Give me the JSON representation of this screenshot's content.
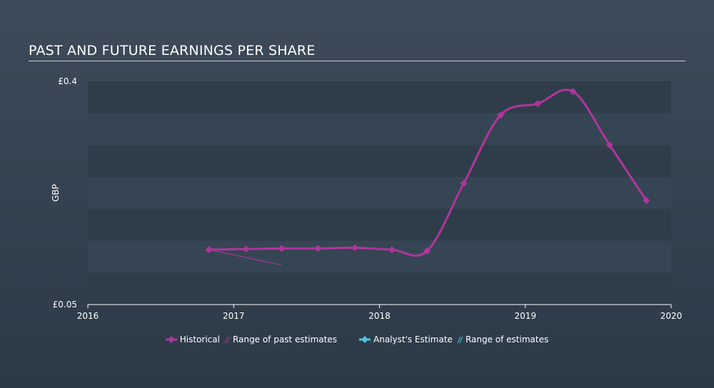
{
  "title": "PAST AND FUTURE EARNINGS PER SHARE",
  "colors": {
    "historical": "#b0359a",
    "past_range": "#b0359a",
    "estimate": "#4fc1e0",
    "estimate_range": "#4fc1e0",
    "band_dark": "#2f3d4b",
    "band_light": "#364554"
  },
  "legend": {
    "historical": "Historical",
    "past_range": "Range of past estimates",
    "estimate": "Analyst's Estimate",
    "estimate_range": "Range of estimates"
  },
  "chart_data": {
    "type": "line",
    "ylabel": "GBP",
    "ylim": [
      0.05,
      0.4
    ],
    "xlim": [
      2016,
      2020
    ],
    "y_tick_labels": [
      "£0.05",
      "£0.4"
    ],
    "x_tick_labels": [
      "2016",
      "2017",
      "2018",
      "2019",
      "2020"
    ],
    "grid": "horizontal bands",
    "legend_position": "bottom",
    "series": [
      {
        "name": "Historical",
        "x": [
          "2016-10-31",
          "2017-02-01",
          "2017-05-01",
          "2017-07-31",
          "2017-10-31",
          "2018-02-01",
          "2018-04-30",
          "2018-07-31",
          "2018-10-31",
          "2019-02-01",
          "2019-04-30",
          "2019-07-31",
          "2019-10-31"
        ],
        "y": [
          0.136,
          0.137,
          0.138,
          0.138,
          0.139,
          0.136,
          0.134,
          0.24,
          0.347,
          0.365,
          0.384,
          0.3,
          0.213
        ]
      }
    ],
    "past_estimate_range": {
      "name": "Range of past estimates",
      "x": [
        "2016-10-31",
        "2017-05-01"
      ],
      "y": [
        0.136,
        0.112
      ]
    }
  }
}
